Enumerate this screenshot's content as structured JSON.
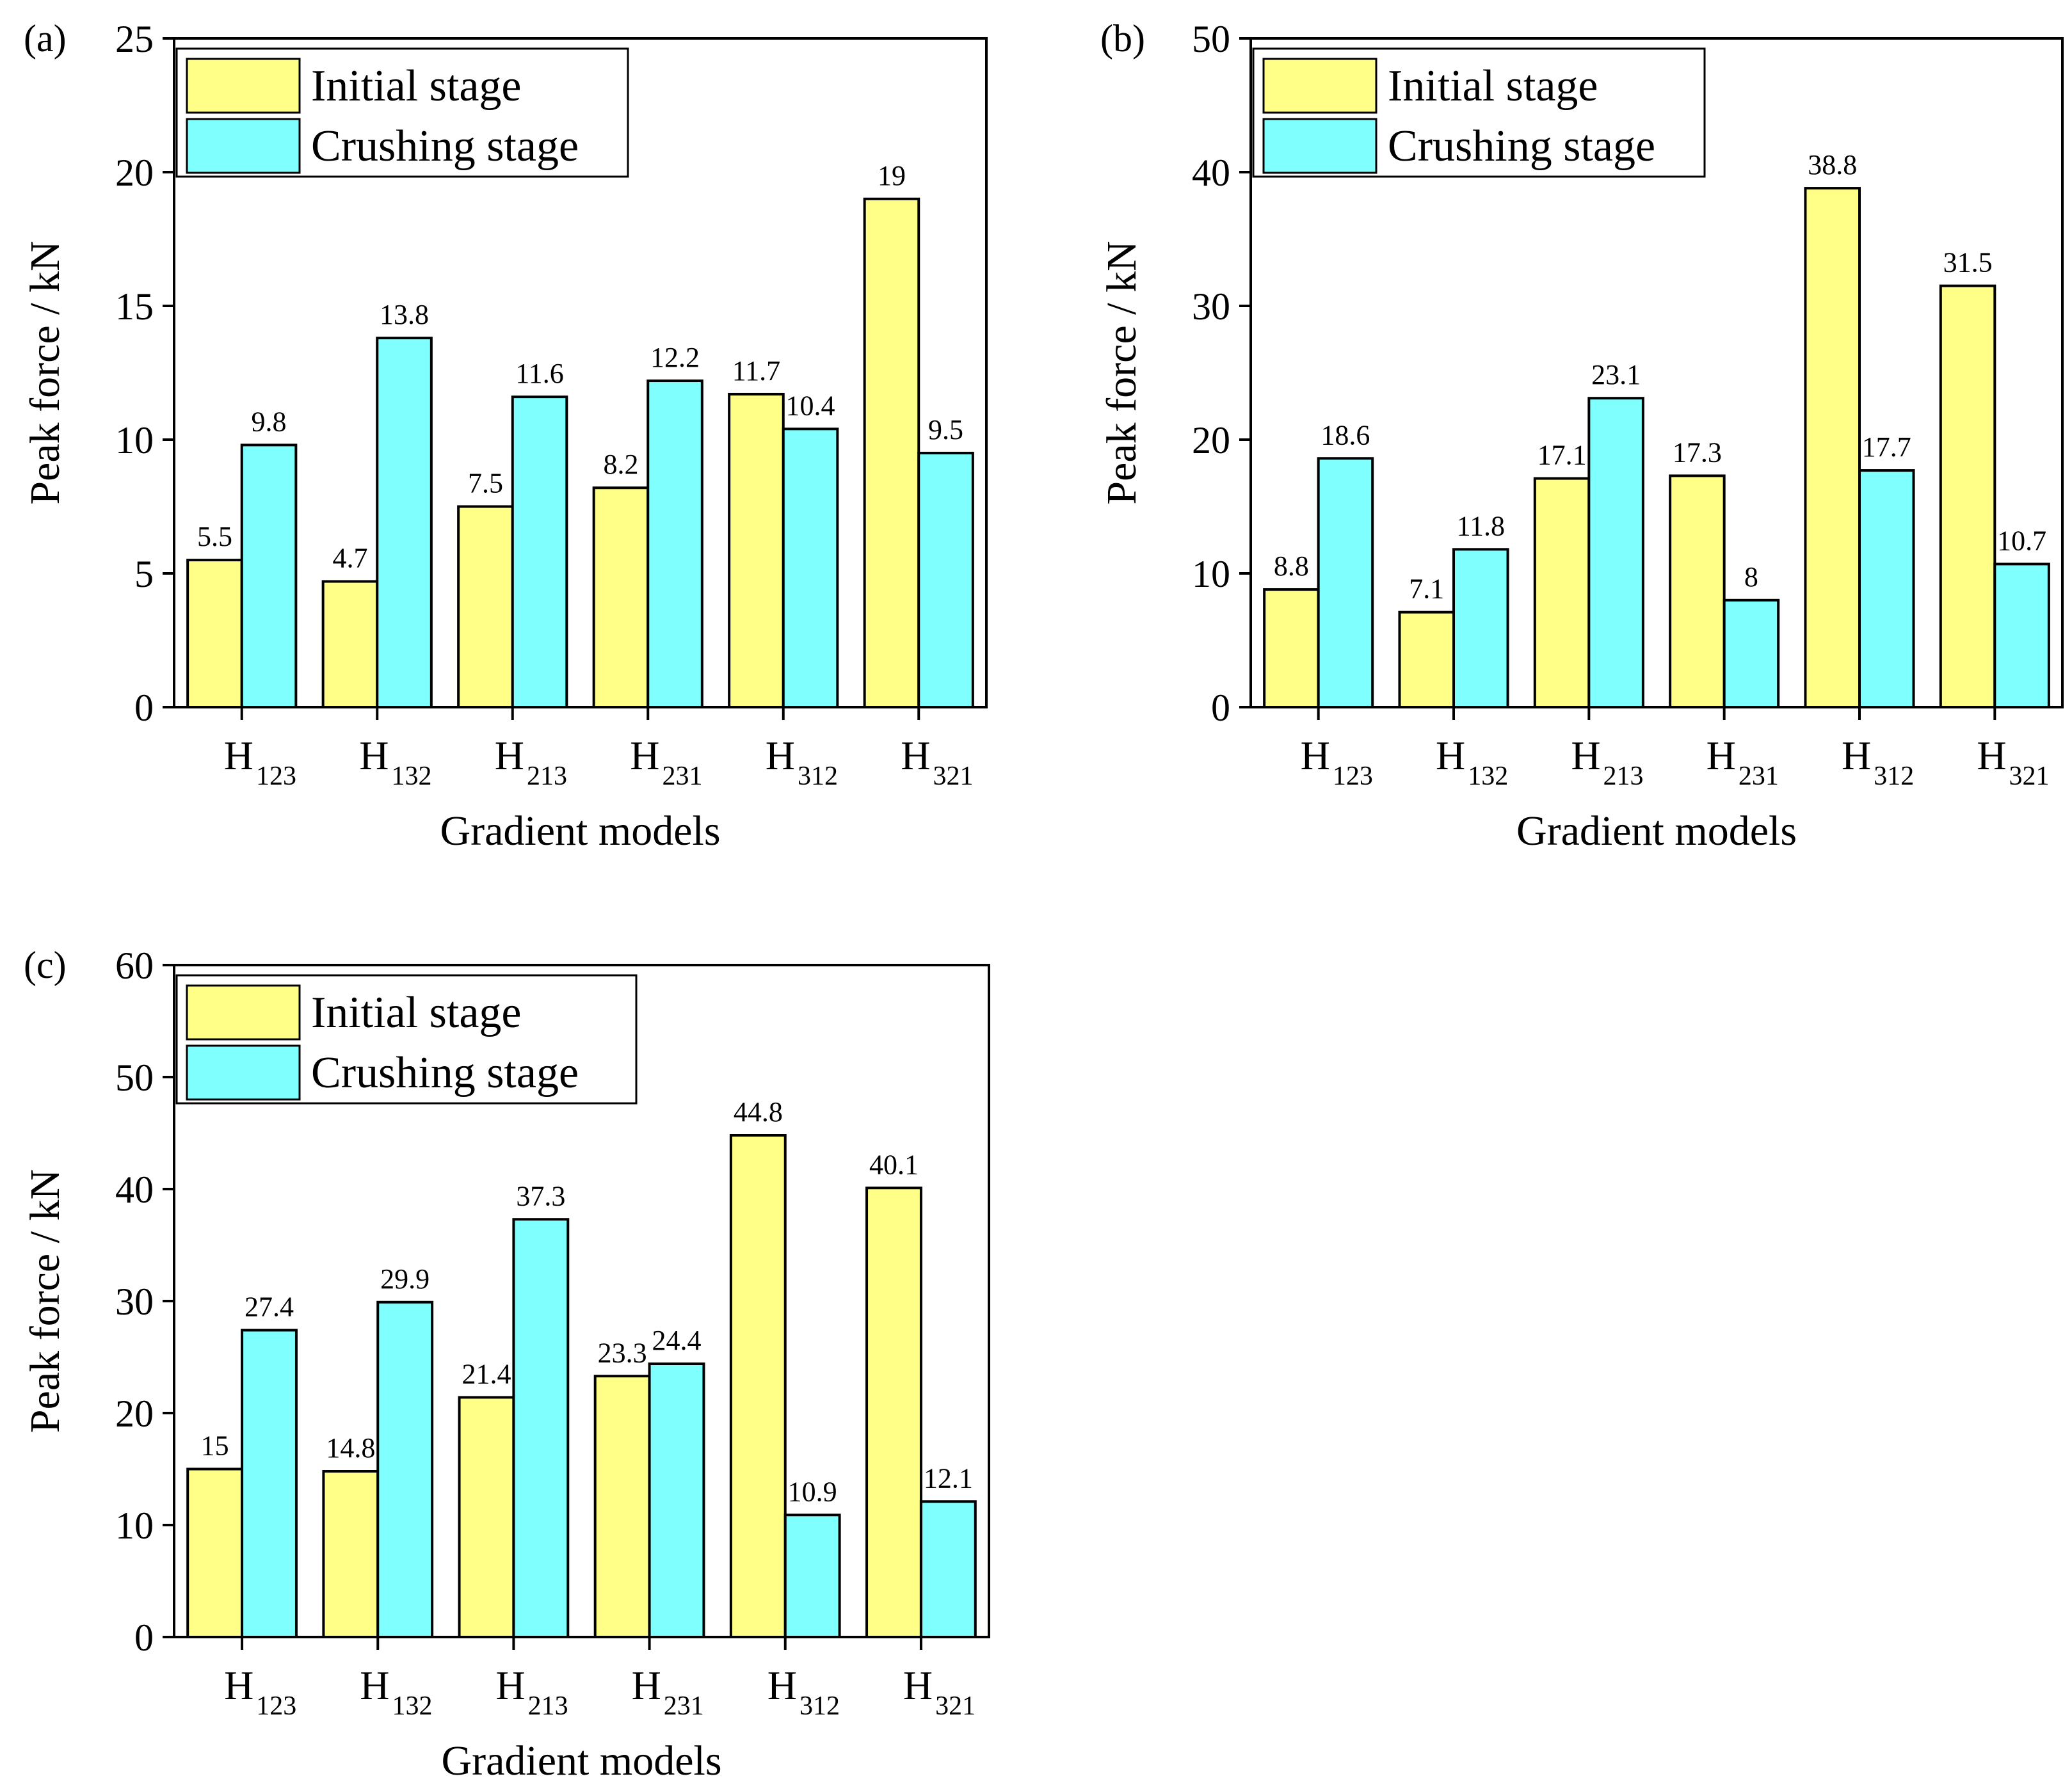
{
  "colors": {
    "initial": "#FFFF88",
    "crushing": "#80FFFF",
    "stroke": "#000000",
    "background": "#FFFFFF"
  },
  "chart_data": [
    {
      "panel_label": "(a)",
      "type": "bar",
      "categories": [
        {
          "main": "H",
          "sub": "123"
        },
        {
          "main": "H",
          "sub": "132"
        },
        {
          "main": "H",
          "sub": "213"
        },
        {
          "main": "H",
          "sub": "231"
        },
        {
          "main": "H",
          "sub": "312"
        },
        {
          "main": "H",
          "sub": "321"
        }
      ],
      "series": [
        {
          "name": "Initial stage",
          "values": [
            5.5,
            4.7,
            7.5,
            8.2,
            11.7,
            19
          ],
          "labels": [
            "5.5",
            "4.7",
            "7.5",
            "8.2",
            "11.7",
            "19"
          ]
        },
        {
          "name": "Crushing stage",
          "values": [
            9.8,
            13.8,
            11.6,
            12.2,
            10.4,
            9.5
          ],
          "labels": [
            "9.8",
            "13.8",
            "11.6",
            "12.2",
            "10.4",
            "9.5"
          ]
        }
      ],
      "xlabel": "Gradient models",
      "ylabel": "Peak force / kN",
      "ylim": [
        0,
        25
      ],
      "yticks": [
        0,
        5,
        10,
        15,
        20,
        25
      ],
      "legend_position": "top-left"
    },
    {
      "panel_label": "(b)",
      "type": "bar",
      "categories": [
        {
          "main": "H",
          "sub": "123"
        },
        {
          "main": "H",
          "sub": "132"
        },
        {
          "main": "H",
          "sub": "213"
        },
        {
          "main": "H",
          "sub": "231"
        },
        {
          "main": "H",
          "sub": "312"
        },
        {
          "main": "H",
          "sub": "321"
        }
      ],
      "series": [
        {
          "name": "Initial stage",
          "values": [
            8.8,
            7.1,
            17.1,
            17.3,
            38.8,
            31.5
          ],
          "labels": [
            "8.8",
            "7.1",
            "17.1",
            "17.3",
            "38.8",
            "31.5"
          ]
        },
        {
          "name": "Crushing stage",
          "values": [
            18.6,
            11.8,
            23.1,
            8,
            17.7,
            10.7
          ],
          "labels": [
            "18.6",
            "11.8",
            "23.1",
            "8",
            "17.7",
            "10.7"
          ]
        }
      ],
      "xlabel": "Gradient models",
      "ylabel": "Peak force / kN",
      "ylim": [
        0,
        50
      ],
      "yticks": [
        0,
        10,
        20,
        30,
        40,
        50
      ],
      "legend_position": "top-left"
    },
    {
      "panel_label": "(c)",
      "type": "bar",
      "categories": [
        {
          "main": "H",
          "sub": "123"
        },
        {
          "main": "H",
          "sub": "132"
        },
        {
          "main": "H",
          "sub": "213"
        },
        {
          "main": "H",
          "sub": "231"
        },
        {
          "main": "H",
          "sub": "312"
        },
        {
          "main": "H",
          "sub": "321"
        }
      ],
      "series": [
        {
          "name": "Initial stage",
          "values": [
            15,
            14.8,
            21.4,
            23.3,
            44.8,
            40.1
          ],
          "labels": [
            "15",
            "14.8",
            "21.4",
            "23.3",
            "44.8",
            "40.1"
          ]
        },
        {
          "name": "Crushing stage",
          "values": [
            27.4,
            29.9,
            37.3,
            24.4,
            10.9,
            12.1
          ],
          "labels": [
            "27.4",
            "29.9",
            "37.3",
            "24.4",
            "10.9",
            "12.1"
          ]
        }
      ],
      "xlabel": "Gradient models",
      "ylabel": "Peak force / kN",
      "ylim": [
        0,
        60
      ],
      "yticks": [
        0,
        10,
        20,
        30,
        40,
        50,
        60
      ],
      "legend_position": "top-left"
    }
  ]
}
